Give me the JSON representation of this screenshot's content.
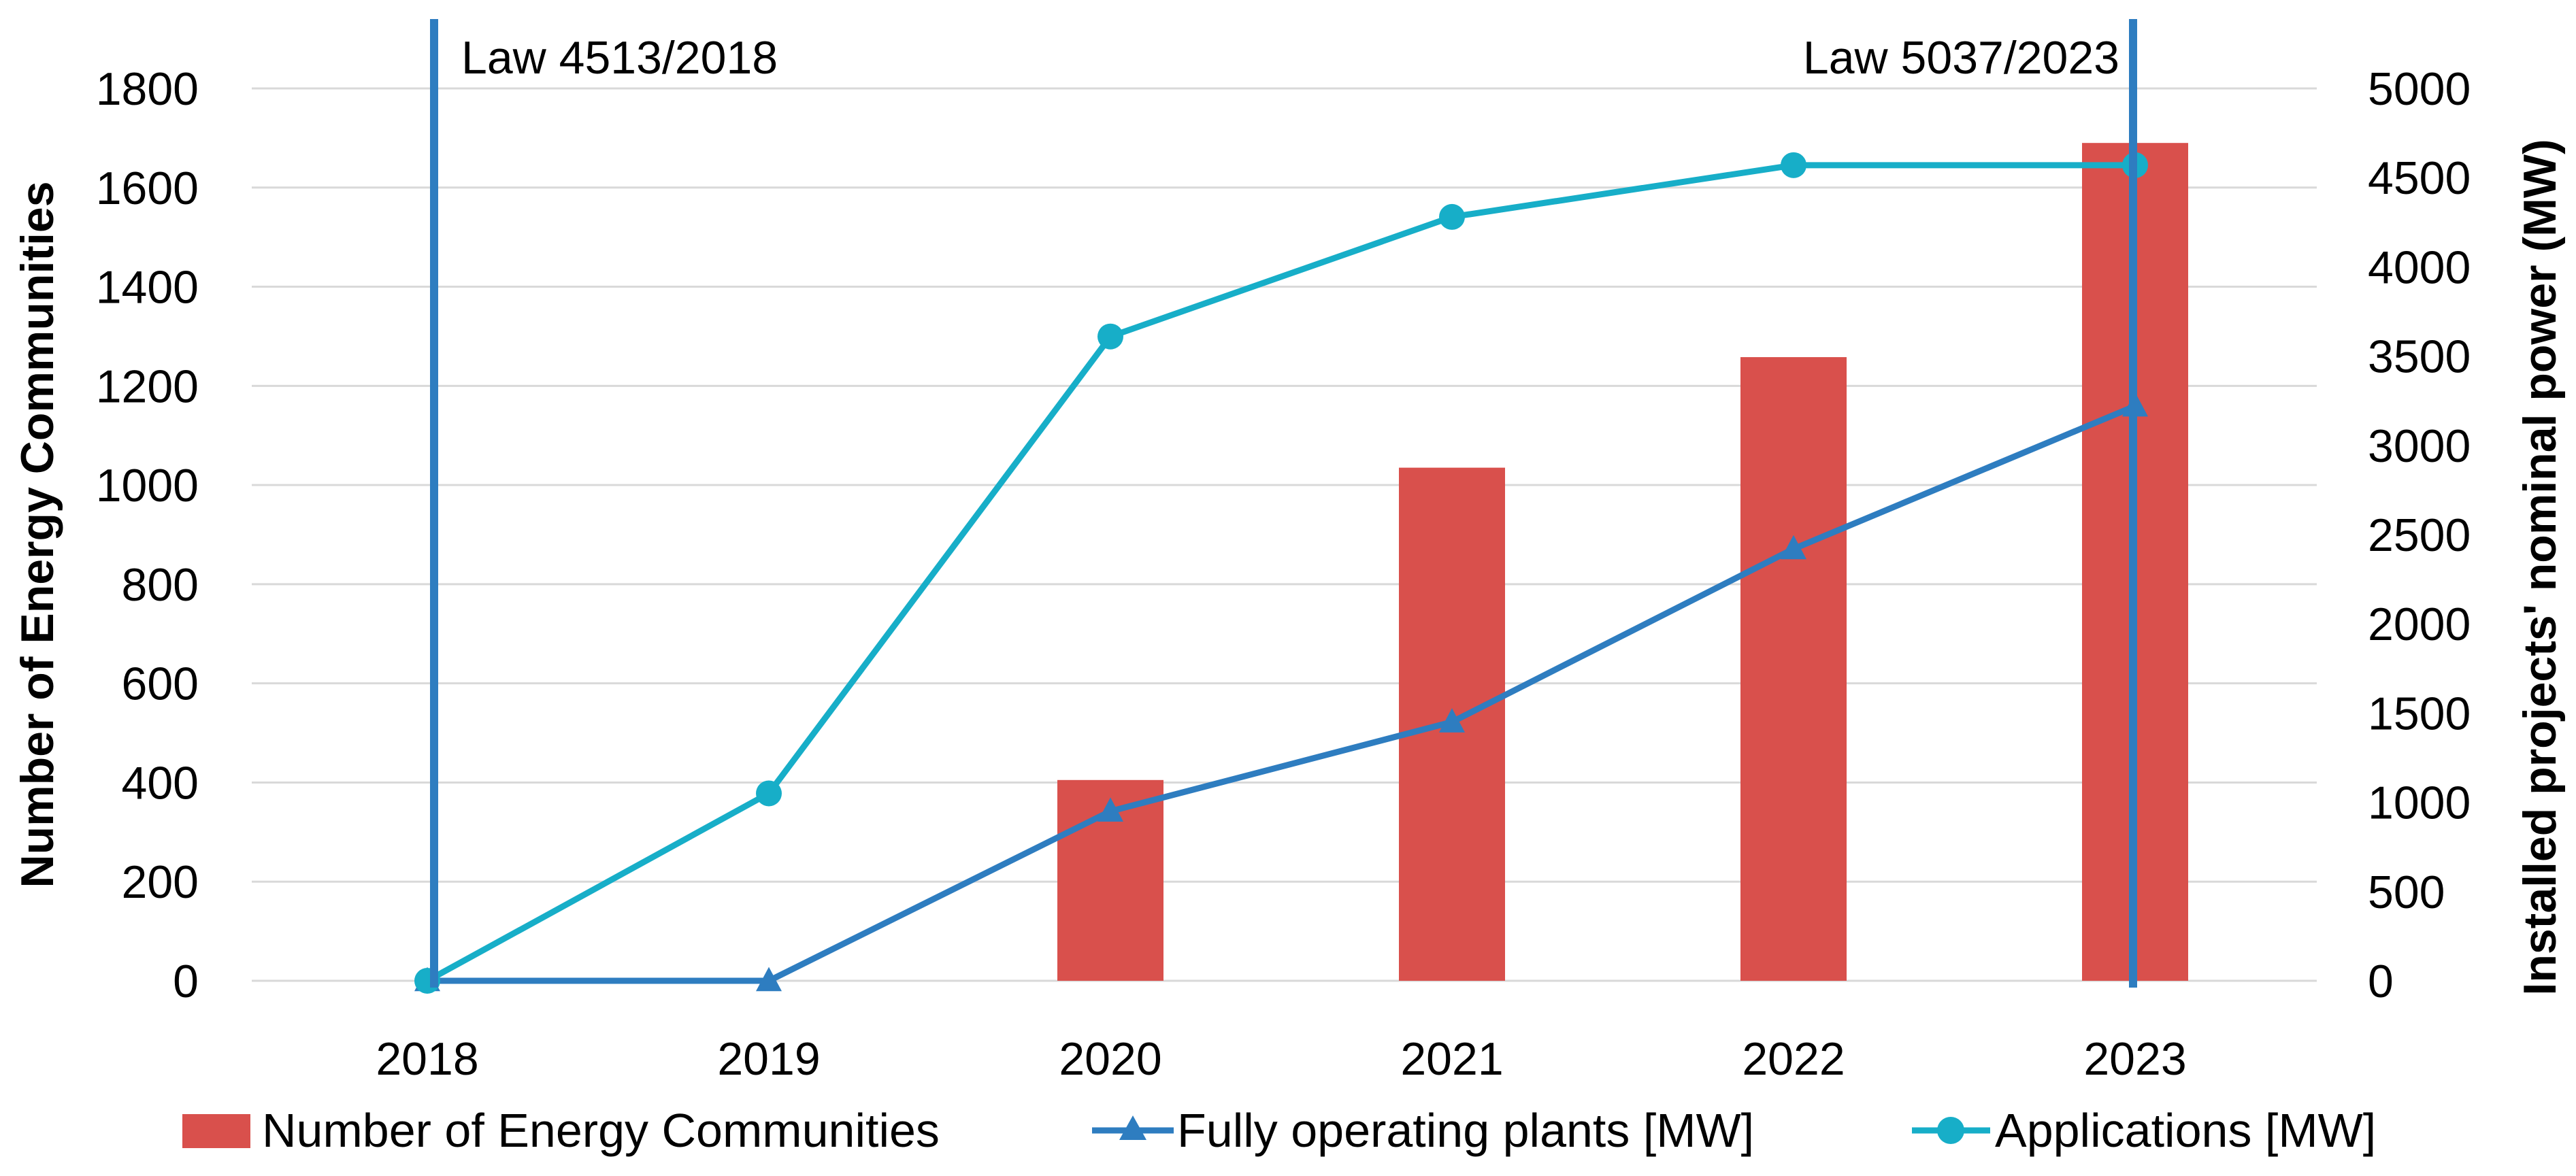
{
  "chart_data": {
    "type": "bar+line",
    "categories": [
      "2018",
      "2019",
      "2020",
      "2021",
      "2022",
      "2023"
    ],
    "bar_series": {
      "name": "Number of Energy Communities",
      "axis": "left",
      "values": [
        0,
        0,
        405,
        1035,
        1258,
        1690
      ],
      "color": "#d9504c"
    },
    "line_series": [
      {
        "name": "Fully operating plants [MW]",
        "axis": "right",
        "marker": "triangle",
        "values": [
          0,
          0,
          950,
          1450,
          2420,
          3220
        ],
        "color": "#2e7dc0"
      },
      {
        "name": "Applications [MW]",
        "axis": "right",
        "marker": "circle",
        "values": [
          0,
          1050,
          3610,
          4280,
          4570,
          4570
        ],
        "color": "#17aec8"
      }
    ],
    "left_axis": {
      "label": "Number of Energy Communities",
      "range": [
        0,
        1800
      ],
      "ticks": [
        "0",
        "200",
        "400",
        "600",
        "800",
        "1000",
        "1200",
        "1400",
        "1600",
        "1800"
      ]
    },
    "right_axis": {
      "label": "Installed projects' nominal power (MW)",
      "range": [
        0,
        5000
      ],
      "ticks": [
        "0",
        "500",
        "1000",
        "1500",
        "2000",
        "2500",
        "3000",
        "3500",
        "4000",
        "4500",
        "5000"
      ]
    },
    "annotations": [
      {
        "label": "Law 4513/2018",
        "at": "2018",
        "color": "#2e7dc0"
      },
      {
        "label": "Law 5037/2023",
        "at": "2023",
        "color": "#2e7dc0"
      }
    ],
    "grid": true,
    "legend_position": "bottom"
  }
}
